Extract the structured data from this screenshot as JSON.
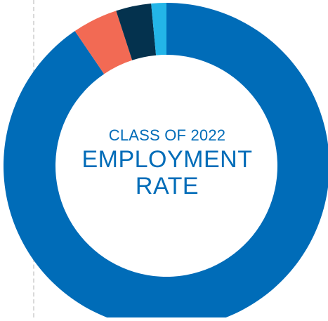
{
  "chart_data": {
    "type": "pie",
    "variant": "donut",
    "title": "EMPLOYMENT RATE",
    "subtitle": "CLASS OF 2022",
    "series": [
      {
        "color": "#006cb8",
        "value": 90.5
      },
      {
        "color": "#f26a54",
        "value": 4.5
      },
      {
        "color": "#04324e",
        "value": 3.5
      },
      {
        "color": "#23b5e8",
        "value": 1.5
      }
    ],
    "start_angle": "top",
    "direction": "clockwise",
    "legend": "none"
  },
  "colors": {
    "background": "#ffffff",
    "text": "#006cb8",
    "guide": "#d9d9d9"
  }
}
